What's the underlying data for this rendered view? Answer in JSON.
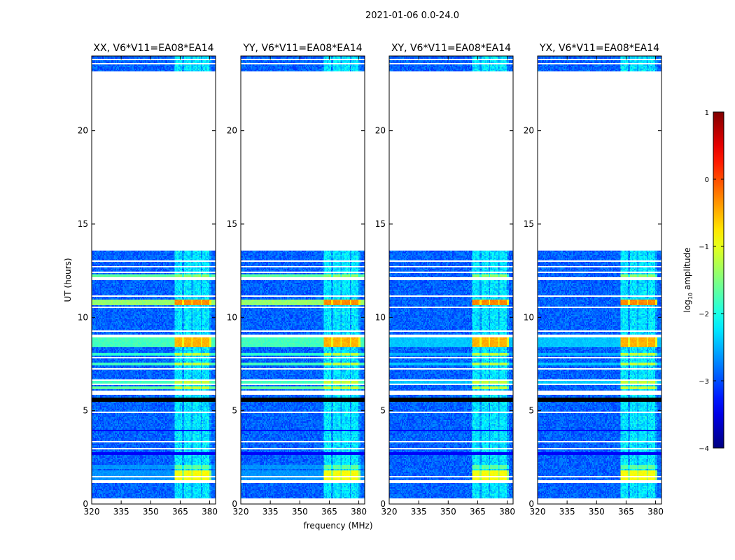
{
  "figure_title": "2021-01-06 0.0-24.0",
  "chart_data": {
    "type": "heatmap",
    "title": "2021-01-06 0.0-24.0",
    "xlabel": "frequency (MHz)",
    "ylabel": "UT (hours)",
    "xlim": [
      320,
      383
    ],
    "ylim": [
      0,
      24
    ],
    "x_ticks": [
      "320",
      "335",
      "350",
      "365",
      "380"
    ],
    "y_ticks": [
      "0",
      "5",
      "10",
      "15",
      "20"
    ],
    "panels": [
      {
        "title": "XX, V6*V11=EA08*EA14",
        "pol": "XX"
      },
      {
        "title": "YY, V6*V11=EA08*EA14",
        "pol": "YY"
      },
      {
        "title": "XY, V6*V11=EA08*EA14",
        "pol": "XY"
      },
      {
        "title": "YX, V6*V11=EA08*EA14",
        "pol": "YX"
      }
    ],
    "data_blocks_hours": [
      [
        0.3,
        5.5
      ],
      [
        5.7,
        13.6
      ],
      [
        23.15,
        24.0
      ]
    ],
    "missing_hours": [
      [
        13.6,
        23.15
      ]
    ],
    "rfi_band_mhz": [
      362,
      381
    ],
    "colorbar": {
      "label": "log10 amplitude",
      "label_prefix": "log",
      "label_sub": "10",
      "label_suffix": " amplitude",
      "min": -4,
      "max": 1,
      "ticks": [
        "1",
        "0",
        "−1",
        "−2",
        "−3",
        "−4"
      ],
      "colormap": "jet"
    }
  }
}
